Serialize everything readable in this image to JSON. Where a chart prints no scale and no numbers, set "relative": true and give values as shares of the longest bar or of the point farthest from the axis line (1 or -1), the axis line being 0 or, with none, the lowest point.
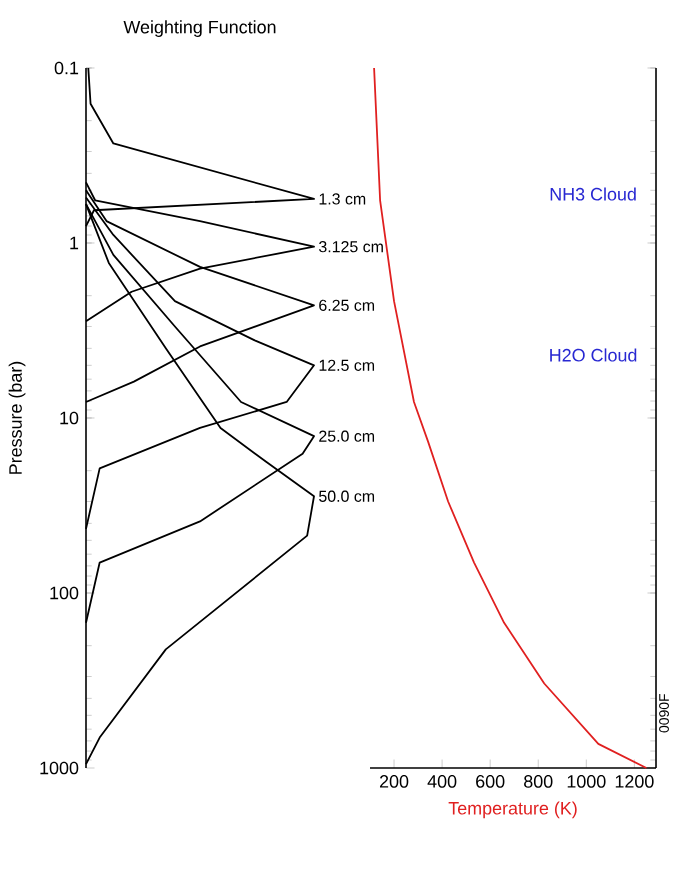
{
  "chart_data": [
    {
      "type": "line",
      "orientation": "horizontal",
      "title": "Weighting Function",
      "ylabel": "Pressure (bar)",
      "relative": true,
      "log": "y",
      "ylim": [
        1000,
        0.1
      ],
      "yticks": [
        0.1,
        1,
        10,
        100,
        1000
      ],
      "tick_labels": "y",
      "series": [
        {
          "name": "1.3 cm",
          "color": "#000000",
          "x": [
            0.1,
            0.16,
            0.27,
            0.56,
            0.65,
            0.8
          ],
          "values": [
            0.01,
            0.02,
            0.12,
            1.0,
            0.035,
            0.0
          ]
        },
        {
          "name": "3.125 cm",
          "color": "#000000",
          "x": [
            0.45,
            0.57,
            0.75,
            1.05,
            1.4,
            1.9,
            2.8
          ],
          "values": [
            0.0,
            0.04,
            0.5,
            1.0,
            0.5,
            0.2,
            0.0
          ]
        },
        {
          "name": "6.25 cm",
          "color": "#000000",
          "x": [
            0.5,
            0.75,
            1.37,
            2.27,
            3.9,
            6.2,
            8.1
          ],
          "values": [
            0.0,
            0.09,
            0.5,
            1.0,
            0.5,
            0.21,
            0.0
          ]
        },
        {
          "name": "12.5 cm",
          "color": "#000000",
          "x": [
            0.55,
            0.9,
            2.15,
            3.6,
            5.0,
            8.1,
            11.4,
            19.4,
            43
          ],
          "values": [
            0.0,
            0.12,
            0.39,
            0.74,
            1.0,
            0.88,
            0.5,
            0.06,
            0.0
          ]
        },
        {
          "name": "25.0 cm",
          "color": "#000000",
          "x": [
            0.6,
            1.17,
            3.0,
            8.1,
            12.7,
            16,
            39,
            67,
            148
          ],
          "values": [
            0.0,
            0.12,
            0.39,
            0.68,
            1.0,
            0.95,
            0.5,
            0.06,
            0.0
          ]
        },
        {
          "name": "50.0 cm",
          "color": "#000000",
          "x": [
            0.6,
            1.3,
            4.0,
            11.4,
            17.8,
            28,
            47,
            210,
            670,
            950
          ],
          "values": [
            0.0,
            0.1,
            0.35,
            0.59,
            0.79,
            1.0,
            0.97,
            0.35,
            0.06,
            0.0
          ]
        }
      ]
    },
    {
      "type": "line",
      "xlabel": "Temperature (K)",
      "log": "y",
      "xlim": [
        100,
        1290
      ],
      "xticks": [
        200,
        400,
        600,
        800,
        1000,
        1200
      ],
      "ylim": [
        1000,
        0.1
      ],
      "yticks": [
        0.1,
        1,
        10,
        100,
        1000
      ],
      "tick_labels": "x",
      "series": [
        {
          "color": "#e02020",
          "x": [
            117,
            142,
            200,
            283,
            342,
            425,
            533,
            658,
            825,
            1050,
            1250
          ],
          "values": [
            0.1,
            0.57,
            2.15,
            8.1,
            13.7,
            30,
            67,
            148,
            329,
            728,
            1000
          ]
        }
      ],
      "annotations": [
        "NH3 Cloud",
        "H2O Cloud",
        "0090F"
      ]
    }
  ]
}
